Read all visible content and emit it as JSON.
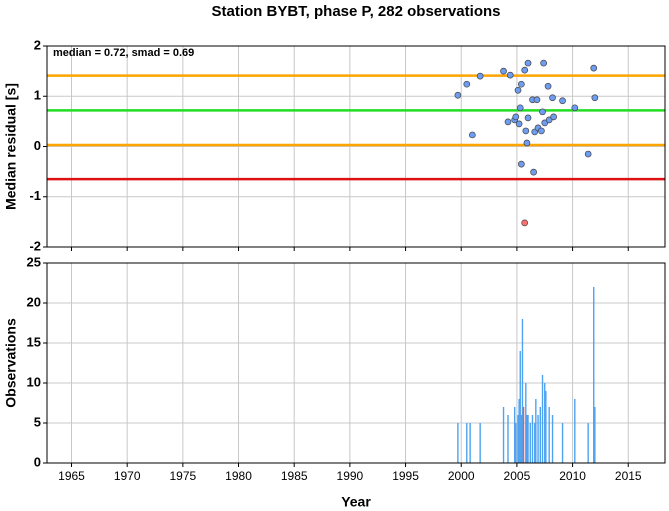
{
  "chart_data": [
    {
      "type": "scatter",
      "title": "Station BYBT, phase P, 282 observations",
      "ylabel": "Median residual [s]",
      "annotation": "median = 0.72, smad = 0.69",
      "xlim": [
        1962.8,
        2018.3
      ],
      "xticks": [
        1965,
        1970,
        1975,
        1980,
        1985,
        1990,
        1995,
        2000,
        2005,
        2010,
        2015
      ],
      "show_xtick_labels": false,
      "ylim": [
        -2,
        2
      ],
      "yticks": [
        -2,
        -1,
        0,
        1,
        2
      ],
      "grid": true,
      "hlines": [
        {
          "value": 1.41,
          "color": "#ffa500"
        },
        {
          "value": 0.72,
          "color": "#22dd22"
        },
        {
          "value": 0.03,
          "color": "#ffa500"
        },
        {
          "value": -0.65,
          "color": "#dd1111"
        }
      ],
      "series": [
        {
          "color": "#6d9cf0",
          "x": [
            1999.7,
            2000.5,
            2001.0,
            2001.7,
            2003.8,
            2004.2,
            2004.4,
            2004.8,
            2004.9,
            2005.1,
            2005.2,
            2005.3,
            2005.4,
            2005.4,
            2005.7,
            2005.8,
            2005.9,
            2006.0,
            2006.0,
            2006.4,
            2006.5,
            2006.6,
            2006.8,
            2006.9,
            2007.2,
            2007.3,
            2007.4,
            2007.5,
            2007.8,
            2007.9,
            2008.2,
            2008.3,
            2009.1,
            2010.2,
            2011.4,
            2011.9,
            2012.0
          ],
          "values": [
            1.02,
            1.24,
            0.23,
            1.4,
            1.5,
            0.49,
            1.42,
            0.53,
            0.59,
            1.12,
            0.45,
            0.77,
            1.24,
            -0.35,
            1.52,
            0.31,
            0.07,
            0.57,
            1.66,
            0.93,
            -0.51,
            0.29,
            0.93,
            0.37,
            0.31,
            0.69,
            1.66,
            0.47,
            1.2,
            0.53,
            0.97,
            0.59,
            0.91,
            0.77,
            -0.15,
            1.56,
            0.97
          ]
        },
        {
          "color": "#ff7070",
          "x": [
            2005.7
          ],
          "values": [
            -1.52
          ]
        }
      ]
    },
    {
      "type": "bar",
      "ylabel": "Observations",
      "xlabel": "Year",
      "xlim": [
        1962.8,
        2018.3
      ],
      "xticks": [
        1965,
        1970,
        1975,
        1980,
        1985,
        1990,
        1995,
        2000,
        2005,
        2010,
        2015
      ],
      "show_xtick_labels": true,
      "ylim": [
        0,
        25
      ],
      "yticks": [
        0,
        5,
        10,
        15,
        20,
        25
      ],
      "grid": true,
      "series": [
        {
          "color": "#4da3f0",
          "x": [
            1999.7,
            2000.5,
            2000.8,
            2001.7,
            2003.8,
            2004.2,
            2004.8,
            2004.9,
            2005.1,
            2005.2,
            2005.3,
            2005.4,
            2005.5,
            2005.8,
            2005.9,
            2006.0,
            2006.2,
            2006.4,
            2006.6,
            2006.7,
            2006.9,
            2007.1,
            2007.3,
            2007.5,
            2007.6,
            2007.9,
            2008.2,
            2009.1,
            2010.2,
            2011.4,
            2011.9,
            2012.0
          ],
          "values": [
            5,
            5,
            5,
            5,
            7,
            6,
            7,
            5,
            6,
            8,
            14,
            6,
            18,
            10,
            6,
            6,
            5,
            6,
            5,
            8,
            6,
            7,
            11,
            10,
            9,
            7,
            6,
            5,
            8,
            5,
            22,
            7
          ]
        },
        {
          "color": "#ff5050",
          "x": [
            2005.6
          ],
          "values": [
            7
          ]
        }
      ]
    }
  ]
}
